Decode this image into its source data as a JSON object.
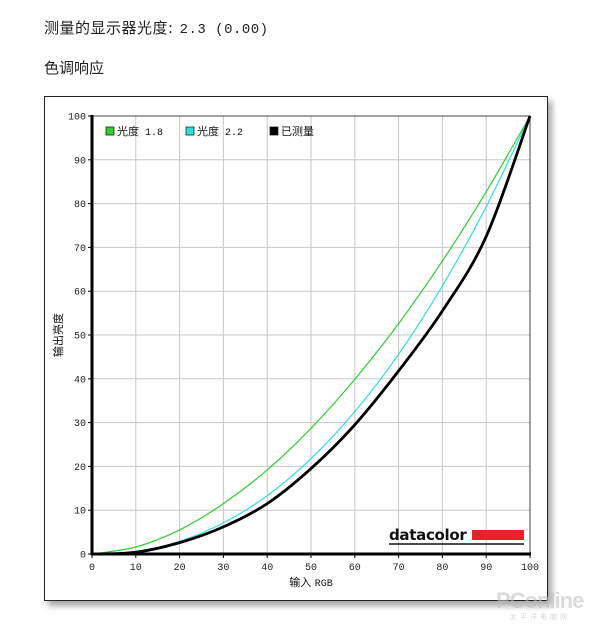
{
  "header": {
    "gamma_label": "测量的显示器光度:",
    "gamma_value": "2.3 (0.00)",
    "section_title": "色调响应"
  },
  "chart_data": {
    "type": "line",
    "title": "色调响应",
    "xlabel": "输入 RGB",
    "ylabel": "输出亮度",
    "xlim": [
      0,
      100
    ],
    "ylim": [
      0,
      100
    ],
    "xticks": [
      0,
      10,
      20,
      30,
      40,
      50,
      60,
      70,
      80,
      90,
      100
    ],
    "yticks": [
      0,
      10,
      20,
      30,
      40,
      50,
      60,
      70,
      80,
      90,
      100
    ],
    "grid": true,
    "legend_position": "top-left",
    "x": [
      0,
      10,
      20,
      30,
      40,
      50,
      60,
      70,
      80,
      90,
      100
    ],
    "series": [
      {
        "name": "光度 1.8",
        "color": "#33cc33",
        "values": [
          0,
          1.6,
          5.5,
          11.5,
          19.2,
          28.7,
          39.9,
          52.6,
          66.9,
          82.7,
          100
        ]
      },
      {
        "name": "光度 2.2",
        "color": "#33dddd",
        "values": [
          0,
          0.6,
          2.9,
          7.1,
          13.3,
          21.8,
          32.5,
          45.6,
          61.2,
          79.3,
          100
        ]
      },
      {
        "name": "已测量",
        "color": "#000000",
        "values": [
          0,
          0.4,
          2.6,
          6.2,
          11.5,
          19.5,
          29.5,
          41.8,
          55.5,
          72.5,
          100
        ]
      }
    ],
    "logo": "datacolor",
    "logo_bar_color": "#e8212b"
  },
  "watermark": {
    "text": "PConline",
    "subtext": "太平洋电脑网"
  }
}
